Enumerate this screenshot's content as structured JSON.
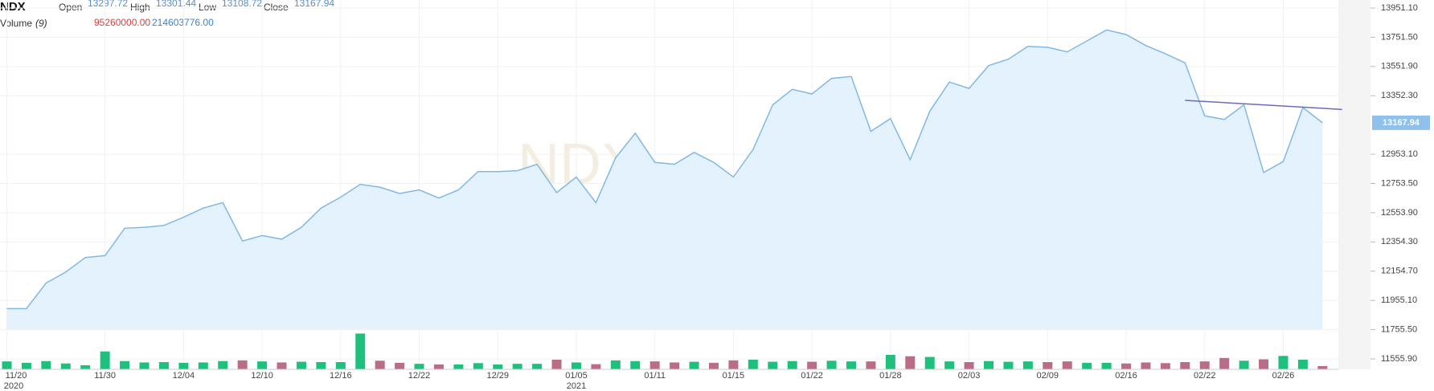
{
  "chart_data": {
    "type": "area",
    "symbol": "NDX",
    "watermark": "NDX",
    "ohlc": [
      {
        "label": "Open",
        "value": "13297.72"
      },
      {
        "label": "High",
        "value": "13301.44"
      },
      {
        "label": "Low",
        "value": "13108.72"
      },
      {
        "label": "Close",
        "value": "13167.94"
      }
    ],
    "volume_title": "Volume",
    "volume_period": "(9)",
    "volume_readout": [
      {
        "value": "95260000.00",
        "color": "#d9413f"
      },
      {
        "value": "214603776.00",
        "color": "#3d7fd1"
      }
    ],
    "categories": [
      "11/20",
      null,
      null,
      null,
      null,
      "11/30",
      null,
      null,
      null,
      "12/04",
      null,
      null,
      null,
      "12/10",
      null,
      null,
      null,
      "12/16",
      null,
      null,
      null,
      "12/22",
      null,
      null,
      null,
      "12/29",
      null,
      null,
      null,
      "01/05",
      null,
      null,
      null,
      "01/11",
      null,
      null,
      null,
      "01/15",
      null,
      null,
      null,
      "01/22",
      null,
      null,
      null,
      "01/28",
      null,
      null,
      null,
      "02/03",
      null,
      null,
      null,
      "02/09",
      null,
      null,
      null,
      "02/16",
      null,
      null,
      null,
      "02/22",
      null,
      null,
      null,
      "02/26",
      null,
      null
    ],
    "years": [
      "2020",
      null,
      null,
      null,
      null,
      null,
      null,
      null,
      null,
      null,
      null,
      null,
      null,
      null,
      null,
      null,
      null,
      null,
      null,
      null,
      null,
      null,
      null,
      null,
      null,
      null,
      null,
      null,
      null,
      "2021",
      null,
      null,
      null,
      null,
      null,
      null,
      null,
      null,
      null,
      null,
      null,
      null,
      null,
      null,
      null,
      null,
      null,
      null,
      null,
      null,
      null,
      null,
      null,
      null,
      null,
      null,
      null,
      null,
      null,
      null,
      null,
      null,
      null,
      null,
      null,
      null,
      null,
      null
    ],
    "series": [
      {
        "name": "NDX",
        "color": "#80b8e6",
        "fill": "#e4f2fd",
        "values": [
          11899.0,
          11899.0,
          12073.6,
          12148.5,
          12248.3,
          12260.7,
          12447.9,
          12454.1,
          12466.6,
          12522.7,
          12585.1,
          12622.5,
          12360.5,
          12398.0,
          12373.0,
          12454.1,
          12585.1,
          12659.9,
          12747.3,
          12728.5,
          12684.9,
          12709.8,
          12653.7,
          12709.8,
          12834.6,
          12834.6,
          12840.8,
          12884.5,
          12691.1,
          12797.2,
          12622.5,
          12928.2,
          13096.6,
          12897.0,
          12884.5,
          12965.6,
          12897.0,
          12797.2,
          12984.3,
          13289.9,
          13396.0,
          13364.8,
          13470.8,
          13483.3,
          13109.0,
          13196.4,
          12915.7,
          13246.3,
          13445.9,
          13402.2,
          13558.1,
          13601.8,
          13689.1,
          13682.9,
          13651.7,
          13726.5,
          13801.4,
          13770.2,
          13695.4,
          13639.2,
          13576.8,
          13215.1,
          13190.1,
          13289.9,
          12828.3,
          12903.2,
          13271.2,
          13167.94
        ]
      }
    ],
    "volume": {
      "up_color": "#1fc07e",
      "down_color": "#b86f86",
      "ylim": [
        0,
        1400000000
      ],
      "values": [
        230000000,
        190000000,
        240000000,
        170000000,
        120000000,
        520000000,
        240000000,
        200000000,
        210000000,
        190000000,
        200000000,
        240000000,
        260000000,
        230000000,
        200000000,
        220000000,
        210000000,
        210000000,
        1040000000,
        250000000,
        190000000,
        160000000,
        140000000,
        140000000,
        180000000,
        140000000,
        160000000,
        160000000,
        280000000,
        200000000,
        150000000,
        260000000,
        240000000,
        230000000,
        200000000,
        220000000,
        190000000,
        260000000,
        280000000,
        220000000,
        240000000,
        220000000,
        250000000,
        230000000,
        230000000,
        420000000,
        380000000,
        360000000,
        230000000,
        210000000,
        240000000,
        220000000,
        230000000,
        210000000,
        230000000,
        190000000,
        190000000,
        170000000,
        200000000,
        180000000,
        210000000,
        230000000,
        330000000,
        250000000,
        290000000,
        390000000,
        280000000,
        95260000
      ]
    },
    "trendline": {
      "color": "#6a6abf",
      "x": [
        60,
        68
      ],
      "values": [
        13321.1,
        13258.7
      ]
    },
    "ylim": [
      11555.9,
      13951.1
    ],
    "yticks": [
      {
        "value": 13951.1,
        "label": "13951.10"
      },
      {
        "value": 13751.5,
        "label": "13751.50"
      },
      {
        "value": 13551.9,
        "label": "13551.90"
      },
      {
        "value": 13352.3,
        "label": "13352.30"
      },
      {
        "value": 12953.1,
        "label": "12953.10"
      },
      {
        "value": 12753.5,
        "label": "12753.50"
      },
      {
        "value": 12553.9,
        "label": "12553.90"
      },
      {
        "value": 12354.3,
        "label": "12354.30"
      },
      {
        "value": 12154.7,
        "label": "12154.70"
      },
      {
        "value": 11955.1,
        "label": "11955.10"
      },
      {
        "value": 11755.5,
        "label": "11755.50"
      },
      {
        "value": 11555.9,
        "label": "11555.90"
      }
    ],
    "grid": true
  }
}
